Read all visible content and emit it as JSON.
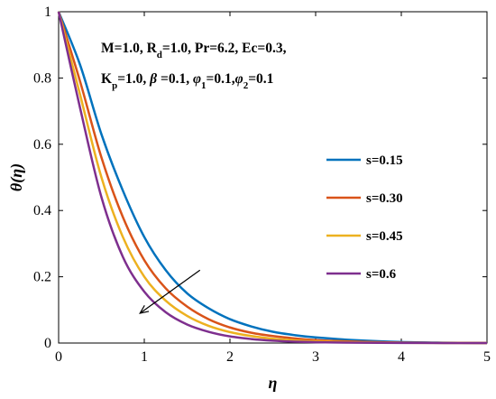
{
  "chart_data": {
    "type": "line",
    "xlabel": "η",
    "ylabel": "θ(η)",
    "xlim": [
      0,
      5
    ],
    "ylim": [
      0,
      1
    ],
    "xticks": [
      "0",
      "1",
      "2",
      "3",
      "4",
      "5"
    ],
    "yticks": [
      "0",
      "0.2",
      "0.4",
      "0.6",
      "0.8",
      "1"
    ],
    "grid": false,
    "legend_position": "right",
    "annotation": {
      "line1": "M=1.0, R_d=1.0, Pr=6.2, Ec=0.3,",
      "line2": "K_p=1.0, β=0.1, φ_1=0.1,φ_2=0.1"
    },
    "arrow": {
      "from": [
        1.65,
        0.22
      ],
      "to": [
        0.95,
        0.09
      ]
    },
    "x": [
      0,
      0.25,
      0.5,
      0.75,
      1.0,
      1.25,
      1.5,
      1.75,
      2.0,
      2.25,
      2.5,
      2.75,
      3.0,
      3.5,
      4.0,
      4.5,
      5.0
    ],
    "series": [
      {
        "name": "s=0.15",
        "color": "#0072BD",
        "values": [
          1.0,
          0.84,
          0.63,
          0.46,
          0.32,
          0.22,
          0.15,
          0.105,
          0.072,
          0.05,
          0.034,
          0.024,
          0.017,
          0.008,
          0.003,
          0.001,
          0.0
        ]
      },
      {
        "name": "s=0.30",
        "color": "#D95319",
        "values": [
          1.0,
          0.79,
          0.56,
          0.38,
          0.25,
          0.165,
          0.11,
          0.072,
          0.047,
          0.031,
          0.021,
          0.014,
          0.009,
          0.004,
          0.0015,
          0.0005,
          0.0
        ]
      },
      {
        "name": "s=0.45",
        "color": "#EDB120",
        "values": [
          1.0,
          0.75,
          0.5,
          0.32,
          0.2,
          0.128,
          0.082,
          0.052,
          0.033,
          0.021,
          0.013,
          0.008,
          0.005,
          0.002,
          0.0008,
          0.0003,
          0.0
        ]
      },
      {
        "name": "s=0.6",
        "color": "#7E2F8E",
        "values": [
          1.0,
          0.71,
          0.44,
          0.26,
          0.155,
          0.093,
          0.056,
          0.034,
          0.02,
          0.012,
          0.007,
          0.004,
          0.0025,
          0.001,
          0.0004,
          0.0001,
          0.0
        ]
      }
    ]
  }
}
